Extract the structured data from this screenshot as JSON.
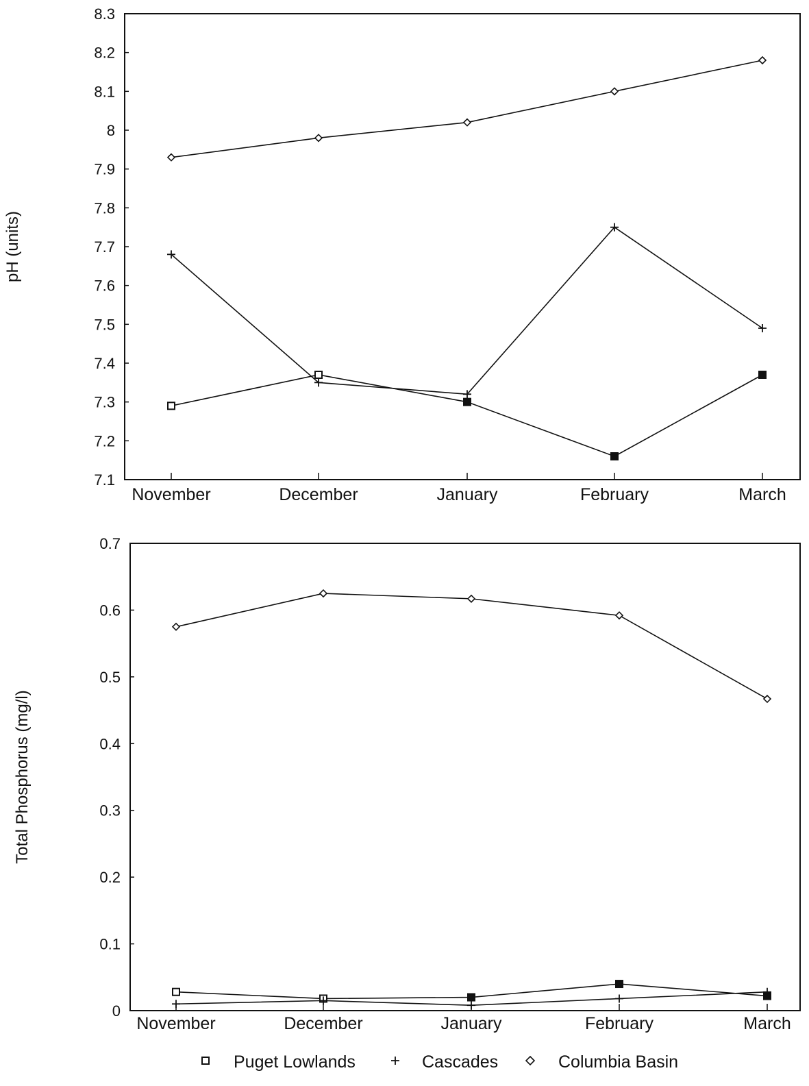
{
  "colors": {
    "ink": "#111111",
    "background": "#ffffff"
  },
  "legend": {
    "placement": "bottom-center",
    "entries": [
      {
        "marker": "square",
        "label": "Puget Lowlands"
      },
      {
        "marker": "plus",
        "label": "Cascades"
      },
      {
        "marker": "diamond",
        "label": "Columbia Basin"
      }
    ]
  },
  "chart_data": [
    {
      "type": "line",
      "title": "",
      "xlabel": "",
      "ylabel": "pH (units)",
      "categories": [
        "November",
        "December",
        "January",
        "February",
        "March"
      ],
      "ylim": [
        7.1,
        8.3
      ],
      "yticks": [
        "8.3",
        "8.2",
        "8.1",
        "8",
        "7.9",
        "7.8",
        "7.7",
        "7.6",
        "7.5",
        "7.4",
        "7.3",
        "7.2",
        "7.1"
      ],
      "grid": false,
      "series": [
        {
          "name": "Puget Lowlands",
          "marker": "square",
          "values": [
            7.29,
            7.37,
            7.3,
            7.16,
            7.37
          ]
        },
        {
          "name": "Cascades",
          "marker": "plus",
          "values": [
            7.68,
            7.35,
            7.32,
            7.75,
            7.49
          ]
        },
        {
          "name": "Columbia Basin",
          "marker": "diamond",
          "values": [
            7.93,
            7.98,
            8.02,
            8.1,
            8.18
          ]
        }
      ]
    },
    {
      "type": "line",
      "title": "",
      "xlabel": "",
      "ylabel": "Total Phosphorus (mg/l)",
      "categories": [
        "November",
        "December",
        "January",
        "February",
        "March"
      ],
      "ylim": [
        0,
        0.7
      ],
      "yticks": [
        "0.7",
        "0.6",
        "0.5",
        "0.4",
        "0.3",
        "0.2",
        "0.1",
        "0"
      ],
      "grid": false,
      "series": [
        {
          "name": "Puget Lowlands",
          "marker": "square",
          "values": [
            0.028,
            0.018,
            0.02,
            0.04,
            0.022
          ]
        },
        {
          "name": "Cascades",
          "marker": "plus",
          "values": [
            0.01,
            0.015,
            0.008,
            0.018,
            0.028
          ]
        },
        {
          "name": "Columbia Basin",
          "marker": "diamond",
          "values": [
            0.575,
            0.625,
            0.617,
            0.592,
            0.467
          ]
        }
      ]
    }
  ]
}
